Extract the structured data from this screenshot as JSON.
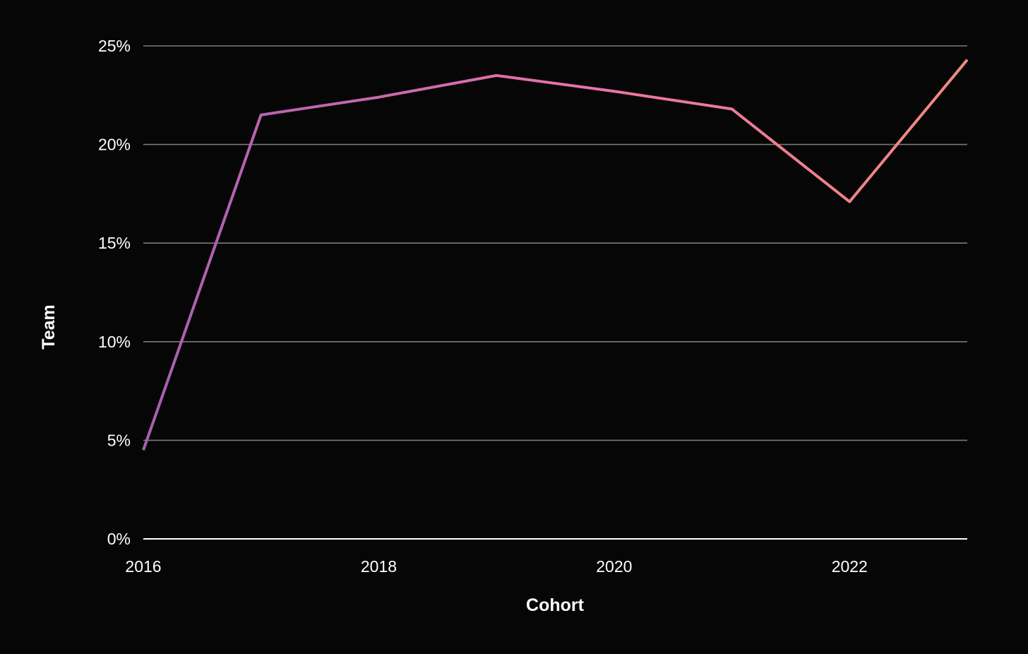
{
  "chart_data": {
    "type": "line",
    "title": "",
    "xlabel": "Cohort",
    "ylabel": "Team",
    "x": [
      2016,
      2017,
      2018,
      2019,
      2020,
      2021,
      2022,
      2023
    ],
    "series": [
      {
        "values": [
          4.5,
          21.5,
          22.4,
          23.5,
          22.7,
          21.8,
          17.1,
          24.3
        ]
      }
    ],
    "xlim": [
      2016,
      2023
    ],
    "ylim": [
      0,
      25
    ],
    "x_ticks": [
      2016,
      2018,
      2020,
      2022
    ],
    "x_tick_labels": [
      "2016",
      "2018",
      "2020",
      "2022"
    ],
    "y_ticks": [
      0,
      5,
      10,
      15,
      20,
      25
    ],
    "y_tick_labels": [
      "0%",
      "5%",
      "10%",
      "15%",
      "20%",
      "25%"
    ],
    "grid": true,
    "legend": "none",
    "colors": {
      "background": "#060606",
      "gridline": "#7a7a7a",
      "baseline": "#ffffff",
      "line_start": "#a65fb2",
      "line_mid": "#ea72a8",
      "line_end": "#f08a7c"
    }
  }
}
